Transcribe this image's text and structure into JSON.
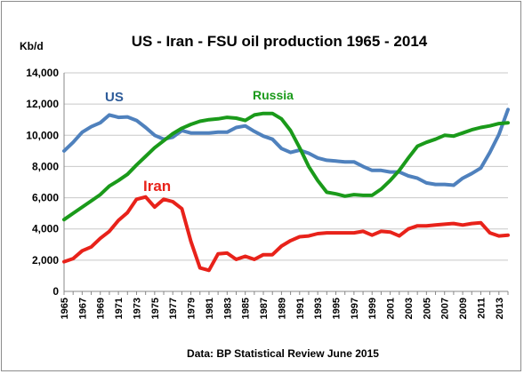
{
  "chart_data": {
    "type": "line",
    "title": "US - Iran - FSU oil production  1965 - 2014",
    "ylabel": "Kb/d",
    "source": "Data: BP Statistical Review June 2015",
    "ylim": [
      0,
      14000
    ],
    "yticks": [
      "0",
      "2,000",
      "4,000",
      "6,000",
      "8,000",
      "10,000",
      "12,000",
      "14,000"
    ],
    "ytick_values": [
      0,
      2000,
      4000,
      6000,
      8000,
      10000,
      12000,
      14000
    ],
    "grid": true,
    "x": [
      1965,
      1966,
      1967,
      1968,
      1969,
      1970,
      1971,
      1972,
      1973,
      1974,
      1975,
      1976,
      1977,
      1978,
      1979,
      1980,
      1981,
      1982,
      1983,
      1984,
      1985,
      1986,
      1987,
      1988,
      1989,
      1990,
      1991,
      1992,
      1993,
      1994,
      1995,
      1996,
      1997,
      1998,
      1999,
      2000,
      2001,
      2002,
      2003,
      2004,
      2005,
      2006,
      2007,
      2008,
      2009,
      2010,
      2011,
      2012,
      2013,
      2014
    ],
    "xticks": [
      "1965",
      "1967",
      "1969",
      "1971",
      "1973",
      "1975",
      "1977",
      "1979",
      "1981",
      "1983",
      "1985",
      "1987",
      "1989",
      "1991",
      "1993",
      "1995",
      "1997",
      "1999",
      "2001",
      "2003",
      "2005",
      "2007",
      "2009",
      "2011",
      "2013"
    ],
    "series": [
      {
        "name": "US",
        "color": "#4f81bd",
        "values": [
          9000,
          9550,
          10200,
          10550,
          10800,
          11300,
          11150,
          11180,
          10950,
          10500,
          10000,
          9750,
          9880,
          10300,
          10150,
          10150,
          10150,
          10200,
          10200,
          10500,
          10600,
          10250,
          9950,
          9750,
          9150,
          8900,
          9050,
          8850,
          8550,
          8400,
          8350,
          8300,
          8300,
          8000,
          7750,
          7750,
          7650,
          7650,
          7400,
          7250,
          6950,
          6850,
          6850,
          6800,
          7250,
          7550,
          7900,
          8900,
          10050,
          11650
        ]
      },
      {
        "name": "Russia",
        "color": "#1a9a1a",
        "values": [
          4600,
          5000,
          5400,
          5800,
          6200,
          6750,
          7100,
          7500,
          8100,
          8650,
          9200,
          9650,
          10100,
          10450,
          10700,
          10900,
          11000,
          11050,
          11150,
          11100,
          10950,
          11300,
          11400,
          11400,
          11050,
          10300,
          9200,
          8000,
          7100,
          6350,
          6250,
          6100,
          6200,
          6150,
          6150,
          6550,
          7100,
          7750,
          8550,
          9300,
          9550,
          9750,
          10000,
          9950,
          10150,
          10350,
          10500,
          10600,
          10750,
          10800
        ]
      },
      {
        "name": "Iran",
        "color": "#e8221a",
        "values": [
          1900,
          2100,
          2600,
          2850,
          3400,
          3850,
          4550,
          5050,
          5900,
          6050,
          5400,
          5900,
          5750,
          5300,
          3200,
          1500,
          1350,
          2400,
          2450,
          2050,
          2250,
          2050,
          2350,
          2350,
          2900,
          3250,
          3500,
          3550,
          3700,
          3750,
          3750,
          3750,
          3750,
          3850,
          3600,
          3850,
          3800,
          3550,
          4000,
          4200,
          4200,
          4250,
          4300,
          4350,
          4250,
          4350,
          4400,
          3750,
          3550,
          3600
        ]
      }
    ],
    "annotations": [
      {
        "text": "US",
        "color": "#2e5c9a"
      },
      {
        "text": "Russia",
        "color": "#1a9a1a"
      },
      {
        "text": "Iran",
        "color": "#e8221a"
      }
    ]
  }
}
